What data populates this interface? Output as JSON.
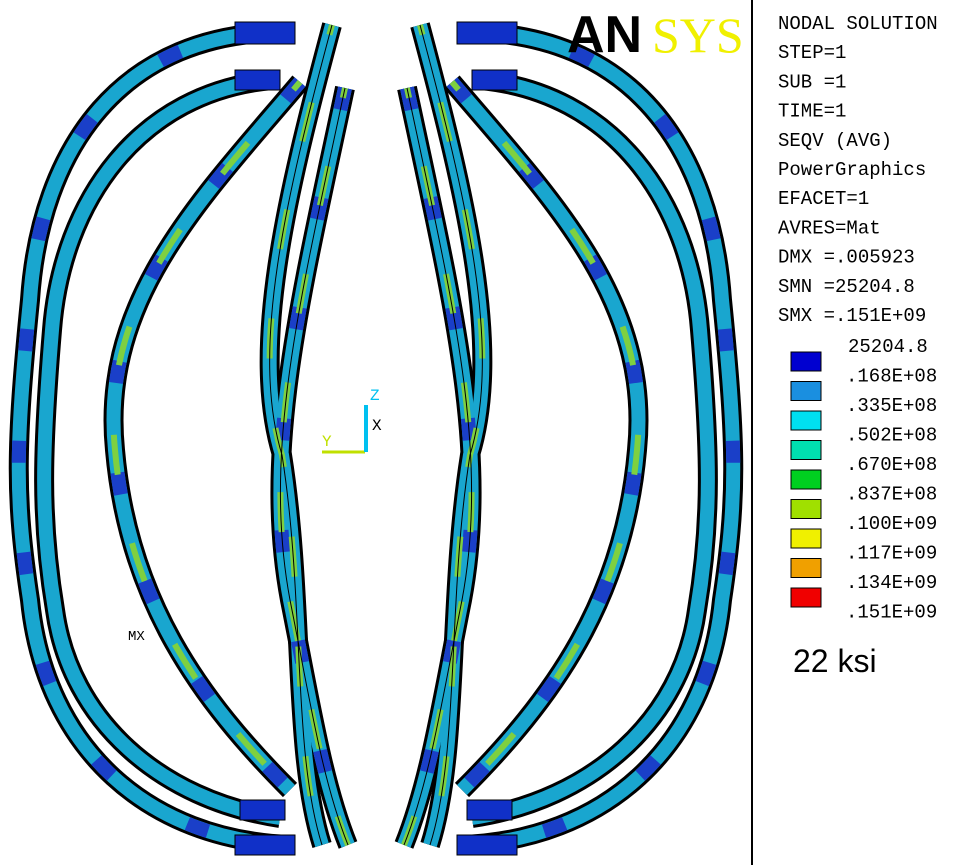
{
  "logo": {
    "part1": "AN",
    "part2": "SYS"
  },
  "info": [
    "NODAL SOLUTION",
    "STEP=1",
    "SUB =1",
    "TIME=1",
    "SEQV      (AVG)",
    "PowerGraphics",
    "EFACET=1",
    "AVRES=Mat",
    "DMX =.005923",
    "SMN =25204.8",
    "SMX =.151E+09"
  ],
  "legend": {
    "colors": [
      "#0000d0",
      "#1a8fe0",
      "#00e0f0",
      "#00e0b0",
      "#00d020",
      "#a0e000",
      "#f0f000",
      "#f0a000",
      "#f00000"
    ],
    "labels": [
      "25204.8",
      ".168E+08",
      ".335E+08",
      ".502E+08",
      ".670E+08",
      ".837E+08",
      ".100E+09",
      ".117E+09",
      ".134E+09",
      ".151E+09"
    ]
  },
  "note": "22 ksi",
  "triad": {
    "y": "Y",
    "z": "Z",
    "x": "X"
  },
  "marker": "MX"
}
